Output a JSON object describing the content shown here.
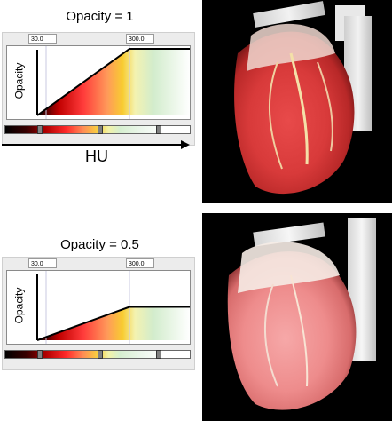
{
  "panels": [
    {
      "title": "Opacity = 1",
      "opacity": 1,
      "field_left": "30.0",
      "field_right": "300.0",
      "y_label": "Opacity"
    },
    {
      "title": "Opacity = 0.5",
      "opacity": 0.5,
      "field_left": "30.0",
      "field_right": "300.0",
      "y_label": "Opacity"
    }
  ],
  "x_axis_label": "HU",
  "colors": {
    "render_bg": "#000000",
    "ramp_line": "#000000",
    "marker": "#808080"
  }
}
